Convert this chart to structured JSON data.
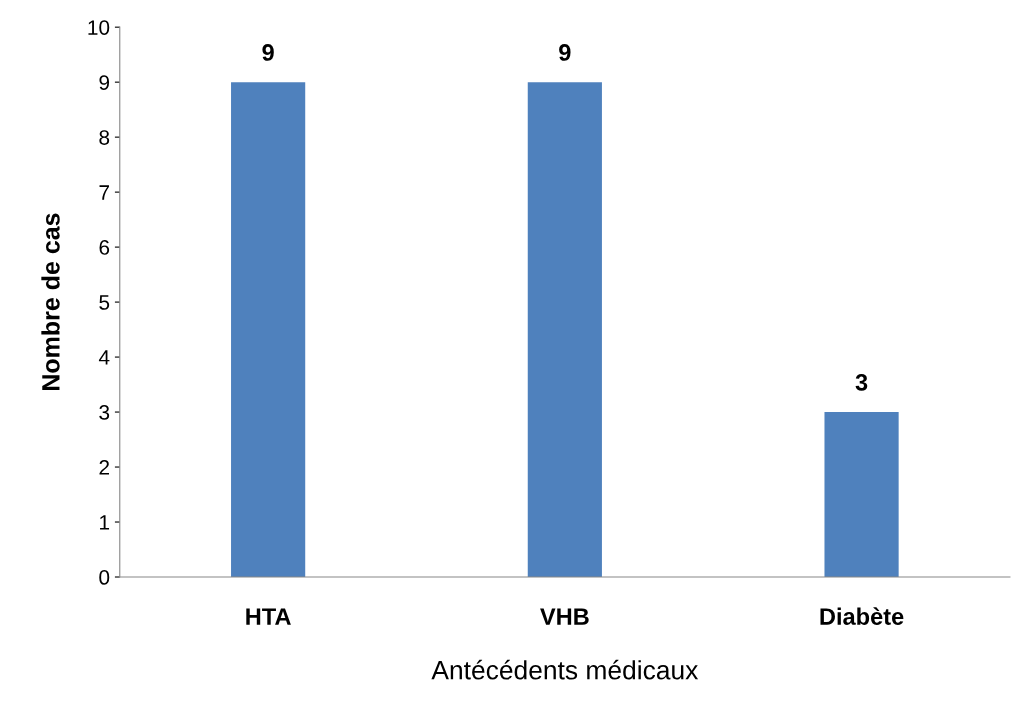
{
  "chart_data": {
    "type": "bar",
    "xlabel": "Antécédents médicaux",
    "ylabel": "Nombre de cas",
    "categories": [
      "HTA",
      "VHB",
      "Diabète"
    ],
    "values": [
      9,
      9,
      3
    ],
    "color": "#4f81bd",
    "ylim": [
      0,
      10
    ],
    "yticks": [
      0,
      1,
      2,
      3,
      4,
      5,
      6,
      7,
      8,
      9,
      10
    ],
    "grid": false,
    "data_labels": true
  }
}
